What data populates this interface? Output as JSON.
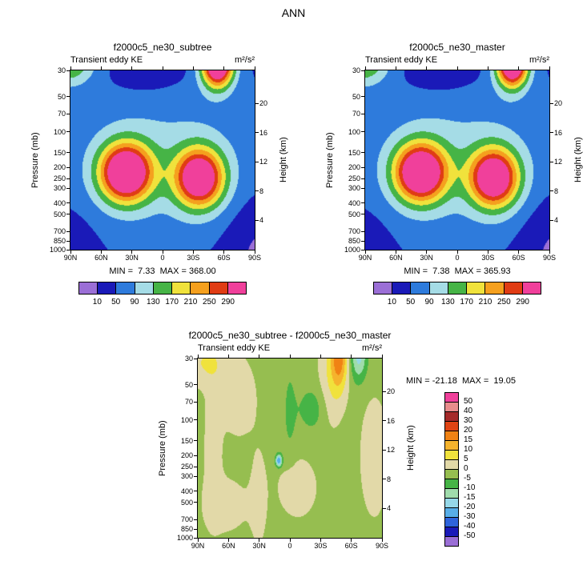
{
  "title": "ANN",
  "axes": {
    "y_label": "Pressure (mb)",
    "y2_label": "Height (km)",
    "y_scale": "log",
    "pressure_ticks": [
      {
        "label": "30",
        "f": 0.0
      },
      {
        "label": "50",
        "f": 0.146
      },
      {
        "label": "70",
        "f": 0.242
      },
      {
        "label": "100",
        "f": 0.343
      },
      {
        "label": "150",
        "f": 0.459
      },
      {
        "label": "200",
        "f": 0.541
      },
      {
        "label": "250",
        "f": 0.604
      },
      {
        "label": "300",
        "f": 0.657
      },
      {
        "label": "400",
        "f": 0.739
      },
      {
        "label": "500",
        "f": 0.802
      },
      {
        "label": "700",
        "f": 0.898
      },
      {
        "label": "850",
        "f": 0.953
      },
      {
        "label": "1000",
        "f": 1.0
      }
    ],
    "height_ticks": [
      {
        "label": "20",
        "f": 0.185
      },
      {
        "label": "16",
        "f": 0.348
      },
      {
        "label": "12",
        "f": 0.51
      },
      {
        "label": "8",
        "f": 0.674
      },
      {
        "label": "4",
        "f": 0.837
      }
    ],
    "lat_ticks": [
      {
        "label": "90N",
        "f": 0.0
      },
      {
        "label": "60N",
        "f": 0.167
      },
      {
        "label": "30N",
        "f": 0.333
      },
      {
        "label": "0",
        "f": 0.5
      },
      {
        "label": "30S",
        "f": 0.667
      },
      {
        "label": "60S",
        "f": 0.833
      },
      {
        "label": "90S",
        "f": 1.0
      }
    ]
  },
  "chart_data": {
    "type": "contour",
    "panels": [
      {
        "id": "subtree",
        "title": "f2000c5_ne30_subtree",
        "variable": "Transient eddy KE",
        "units": "m²/s²",
        "stats": "MIN =  7.33  MAX = 368.00",
        "min": 7.33,
        "max": 368.0,
        "levels": [
          10,
          50,
          90,
          130,
          170,
          210,
          250,
          290
        ],
        "colorbar_labels": [
          "10",
          "50",
          "90",
          "130",
          "170",
          "210",
          "250",
          "290"
        ],
        "colors": [
          "#9B6FD6",
          "#1A1AB8",
          "#2E7BDC",
          "#A5DCE6",
          "#46B446",
          "#F0E23C",
          "#F5A01E",
          "#E03C14",
          "#F0409B"
        ],
        "colorbar": "horizontal",
        "field_model": {
          "base": 40,
          "bumps": [
            {
              "a": 345,
              "x": 0.3,
              "y": 0.57,
              "sx": 0.14,
              "sy": 0.16
            },
            {
              "a": 315,
              "x": 0.7,
              "y": 0.6,
              "sx": 0.13,
              "sy": 0.16
            },
            {
              "a": 370,
              "x": 0.8,
              "y": -0.04,
              "sx": 0.085,
              "sy": 0.13
            },
            {
              "a": 150,
              "x": -0.02,
              "y": -0.06,
              "sx": 0.14,
              "sy": 0.13
            },
            {
              "a": 60,
              "x": 0.5,
              "y": 0.5,
              "sx": 0.55,
              "sy": 0.45
            },
            {
              "a": -34,
              "x": 0.42,
              "y": 0.0,
              "sx": 0.2,
              "sy": 0.13
            },
            {
              "a": -38,
              "x": -0.02,
              "y": 1.04,
              "sx": 0.14,
              "sy": 0.22
            },
            {
              "a": -42,
              "x": 1.02,
              "y": 1.0,
              "sx": 0.17,
              "sy": 0.28
            }
          ]
        }
      },
      {
        "id": "master",
        "title": "f2000c5_ne30_master",
        "variable": "Transient eddy KE",
        "units": "m²/s²",
        "stats": "MIN =  7.38  MAX = 365.93",
        "min": 7.38,
        "max": 365.93,
        "levels": [
          10,
          50,
          90,
          130,
          170,
          210,
          250,
          290
        ],
        "colorbar_labels": [
          "10",
          "50",
          "90",
          "130",
          "170",
          "210",
          "250",
          "290"
        ],
        "colors": [
          "#9B6FD6",
          "#1A1AB8",
          "#2E7BDC",
          "#A5DCE6",
          "#46B446",
          "#F0E23C",
          "#F5A01E",
          "#E03C14",
          "#F0409B"
        ],
        "colorbar": "horizontal",
        "field_model": {
          "base": 40,
          "bumps": [
            {
              "a": 342,
              "x": 0.3,
              "y": 0.57,
              "sx": 0.14,
              "sy": 0.16
            },
            {
              "a": 318,
              "x": 0.7,
              "y": 0.6,
              "sx": 0.13,
              "sy": 0.16
            },
            {
              "a": 365,
              "x": 0.8,
              "y": -0.04,
              "sx": 0.085,
              "sy": 0.13
            },
            {
              "a": 148,
              "x": -0.02,
              "y": -0.06,
              "sx": 0.14,
              "sy": 0.13
            },
            {
              "a": 60,
              "x": 0.5,
              "y": 0.5,
              "sx": 0.55,
              "sy": 0.45
            },
            {
              "a": -34,
              "x": 0.42,
              "y": 0.0,
              "sx": 0.2,
              "sy": 0.13
            },
            {
              "a": -38,
              "x": -0.02,
              "y": 1.04,
              "sx": 0.14,
              "sy": 0.22
            },
            {
              "a": -42,
              "x": 1.02,
              "y": 1.0,
              "sx": 0.17,
              "sy": 0.28
            }
          ]
        }
      },
      {
        "id": "difference",
        "title": "f2000c5_ne30_subtree - f2000c5_ne30_master",
        "variable": "Transient eddy KE",
        "units": "m²/s²",
        "stats": "MIN = -21.18  MAX =  19.05",
        "min": -21.18,
        "max": 19.05,
        "levels": [
          -50,
          -40,
          -30,
          -20,
          -15,
          -10,
          -5,
          0,
          5,
          10,
          15,
          20,
          30,
          40,
          50
        ],
        "colorbar_labels": [
          "50",
          "40",
          "30",
          "20",
          "15",
          "10",
          "5",
          "0",
          "-5",
          "-10",
          "-15",
          "-20",
          "-30",
          "-40",
          "-50"
        ],
        "colors": [
          "#9B6FD6",
          "#1A1AB8",
          "#2E64DC",
          "#58AEE8",
          "#96D8E8",
          "#A0DCAC",
          "#46B446",
          "#96BE50",
          "#E2D9A8",
          "#F0E23C",
          "#F5B32D",
          "#F08214",
          "#E04414",
          "#A52A2A",
          "#E88C8C",
          "#F0409B"
        ],
        "colorbar": "vertical",
        "field_model": {
          "base": -2,
          "bumps": [
            {
              "a": 17,
              "x": 0.77,
              "y": -0.02,
              "sx": 0.045,
              "sy": 0.18
            },
            {
              "a": 7,
              "x": 0.73,
              "y": 0.08,
              "sx": 0.07,
              "sy": 0.28
            },
            {
              "a": -15,
              "x": 0.875,
              "y": -0.02,
              "sx": 0.045,
              "sy": 0.14
            },
            {
              "a": 7,
              "x": 0.04,
              "y": 0.02,
              "sx": 0.13,
              "sy": 0.13
            },
            {
              "a": 5,
              "x": 0.22,
              "y": 0.22,
              "sx": 0.1,
              "sy": 0.22
            },
            {
              "a": -23,
              "x": 0.44,
              "y": 0.57,
              "sx": 0.018,
              "sy": 0.035
            },
            {
              "a": 6,
              "x": 0.54,
              "y": 0.72,
              "sx": 0.1,
              "sy": 0.16
            },
            {
              "a": 5,
              "x": 0.96,
              "y": 0.55,
              "sx": 0.08,
              "sy": 0.35
            },
            {
              "a": -6,
              "x": 0.62,
              "y": 0.28,
              "sx": 0.07,
              "sy": 0.12
            },
            {
              "a": 5,
              "x": 0.15,
              "y": 0.82,
              "sx": 0.12,
              "sy": 0.15
            },
            {
              "a": 4.5,
              "x": 0.08,
              "y": 0.5,
              "sx": 0.05,
              "sy": 0.4
            },
            {
              "a": 4,
              "x": 0.33,
              "y": 0.78,
              "sx": 0.05,
              "sy": 0.3
            },
            {
              "a": -4,
              "x": 0.5,
              "y": 0.3,
              "sx": 0.04,
              "sy": 0.3
            }
          ]
        }
      }
    ]
  }
}
